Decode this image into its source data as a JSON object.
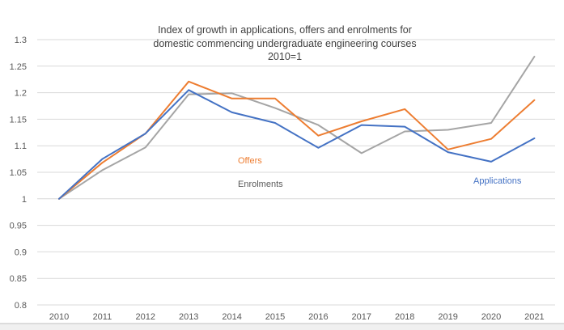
{
  "chart_data": {
    "type": "line",
    "title_lines": [
      "Index of growth in applications, offers and enrolments for",
      "domestic commencing undergraduate engineering  courses",
      "2010=1"
    ],
    "xlabel": "",
    "ylabel": "",
    "categories": [
      "2010",
      "2011",
      "2012",
      "2013",
      "2014",
      "2015",
      "2016",
      "2017",
      "2018",
      "2019",
      "2020",
      "2021"
    ],
    "y_ticks": [
      "0.8",
      "0.85",
      "0.9",
      "0.95",
      "1",
      "1.05",
      "1.1",
      "1.15",
      "1.2",
      "1.25",
      "1.3"
    ],
    "ylim": [
      0.8,
      1.3
    ],
    "grid": true,
    "legend": "none (inline series labels)",
    "series": [
      {
        "name": "Applications",
        "color": "#4472c4",
        "values": [
          1.0,
          1.075,
          1.123,
          1.205,
          1.163,
          1.143,
          1.096,
          1.139,
          1.136,
          1.088,
          1.07,
          1.114
        ]
      },
      {
        "name": "Offers",
        "color": "#ed7d31",
        "values": [
          1.0,
          1.068,
          1.123,
          1.221,
          1.189,
          1.189,
          1.119,
          1.146,
          1.169,
          1.093,
          1.113,
          1.186
        ]
      },
      {
        "name": "Enrolments",
        "color": "#a5a5a5",
        "values": [
          1.0,
          1.054,
          1.097,
          1.197,
          1.199,
          1.171,
          1.139,
          1.086,
          1.127,
          1.13,
          1.143,
          1.268
        ]
      }
    ]
  }
}
